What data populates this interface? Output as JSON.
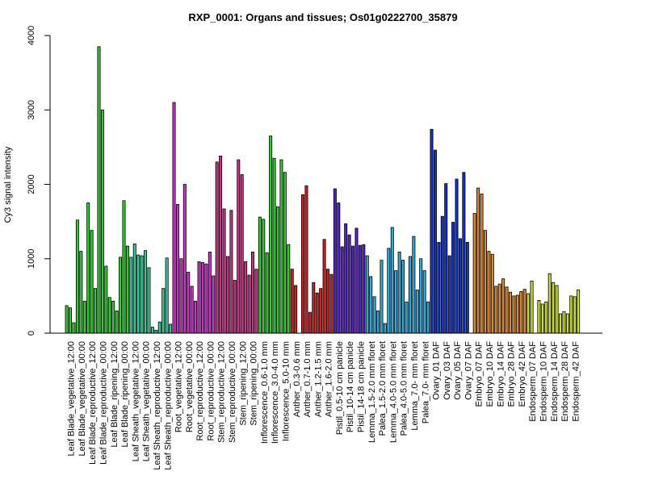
{
  "chart_data": {
    "type": "bar",
    "title": "RXP_0001: Organs and tissues; Os01g0222700_35879",
    "ylabel": "Cy3 signal intensity",
    "xlabel": "",
    "ylim": [
      0,
      4000
    ],
    "yticks": [
      0,
      1000,
      2000,
      3000,
      4000
    ],
    "grid": false,
    "groups": [
      {
        "color": "#33cc33",
        "bars": [
          {
            "label": "Leaf Blade_vegetative_12:00",
            "values": [
              370,
              340,
              140
            ]
          },
          {
            "label": "Leaf Blade_vegetative_00:00",
            "values": [
              1520,
              1100,
              430
            ]
          },
          {
            "label": "Leaf Blade_reproductive_12:00",
            "values": [
              1750,
              1380,
              600
            ]
          },
          {
            "label": "Leaf Blade_reproductive_00:00",
            "values": [
              3850,
              3000,
              900
            ]
          },
          {
            "label": "Leaf Blade_ripening_12:00",
            "values": [
              480,
              430,
              300
            ]
          },
          {
            "label": "Leaf Blade_ripening_00:00",
            "values": [
              1020,
              1780,
              1170
            ]
          }
        ]
      },
      {
        "color": "#33cc99",
        "bars": [
          {
            "label": "Leaf Sheath_vegetative_12:00",
            "values": [
              1020,
              1200,
              1050
            ]
          },
          {
            "label": "Leaf Sheath_vegetative_00:00",
            "values": [
              1040,
              1110,
              880
            ]
          },
          {
            "label": "Leaf Sheath_reproductive_12:00",
            "values": [
              80,
              40,
              150
            ]
          },
          {
            "label": "Leaf Sheath_reproductive_00:00",
            "values": [
              600,
              1010,
              120
            ]
          }
        ]
      },
      {
        "color": "#cc33cc",
        "bars": [
          {
            "label": "Root_vegetative_12:00",
            "values": [
              3100,
              1730,
              1000
            ]
          },
          {
            "label": "Root_vegetative_00:00",
            "values": [
              2000,
              820,
              630
            ]
          },
          {
            "label": "Root_reproductive_12:00",
            "values": [
              430,
              960,
              950
            ]
          },
          {
            "label": "Root_reproductive_00:00",
            "values": [
              930,
              1090,
              770
            ]
          }
        ]
      },
      {
        "color": "#cc3388",
        "bars": [
          {
            "label": "Stem_reproductive_12:00",
            "values": [
              2300,
              2380,
              1670
            ]
          },
          {
            "label": "Stem_reproductive_00:00",
            "values": [
              1030,
              1650,
              710
            ]
          },
          {
            "label": "Stem_ripening_12:00",
            "values": [
              2330,
              2130,
              960
            ]
          },
          {
            "label": "Stem_ripening_00:00",
            "values": [
              780,
              1090,
              860
            ]
          }
        ]
      },
      {
        "color": "#33cc33",
        "bars": [
          {
            "label": "Inflorescence_0.6-1.0 mm",
            "values": [
              1560,
              1530,
              1080
            ]
          },
          {
            "label": "Inflorescence_3.0-4.0 mm",
            "values": [
              2650,
              2350,
              1700
            ]
          },
          {
            "label": "Inflorescence_5.0-10 mm",
            "values": [
              2330,
              2160,
              1190
            ]
          }
        ]
      },
      {
        "color": "#cc2222",
        "bars": [
          {
            "label": "Anther_0.3-0.6 mm",
            "values": [
              860,
              640
            ]
          },
          {
            "label": "Anther_0.7-1.0 mm",
            "values": [
              1860,
              1980,
              280
            ]
          },
          {
            "label": "Anther_1.2-1.5 mm",
            "values": [
              680,
              540,
              600
            ]
          },
          {
            "label": "Anther_1.6-2.0 mm",
            "values": [
              1260,
              860,
              790
            ]
          }
        ]
      },
      {
        "color": "#5522cc",
        "bars": [
          {
            "label": "Pistil_0.5-10 cm panicle",
            "values": [
              1940,
              1750,
              1160
            ]
          },
          {
            "label": "Pistil_10-14 cm panicle",
            "values": [
              1470,
              1320,
              1170
            ]
          },
          {
            "label": "Pistil_14-18 cm panicle",
            "values": [
              1410,
              1180,
              1190
            ]
          }
        ]
      },
      {
        "color": "#33aadd",
        "bars": [
          {
            "label": "Lemma_1.5-2.0 mm floret",
            "values": [
              1040,
              760,
              490
            ]
          },
          {
            "label": "Palea_1.5-2.0 mm floret",
            "values": [
              300,
              980,
              130
            ]
          },
          {
            "label": "Lemma_4.0-5.0 mm floret",
            "values": [
              1140,
              1420,
              840
            ]
          },
          {
            "label": "Palea_4.0-5.0 mm floret",
            "values": [
              1090,
              980,
              420
            ]
          },
          {
            "label": "Lemma_7.0- mm floret",
            "values": [
              1030,
              1300,
              580
            ]
          },
          {
            "label": "Palea_7.0- mm floret",
            "values": [
              1000,
              840,
              420
            ]
          }
        ]
      },
      {
        "color": "#1133cc",
        "bars": [
          {
            "label": "Ovary_01 DAF",
            "values": [
              2740,
              2460,
              1220
            ]
          },
          {
            "label": "Ovary_03 DAF",
            "values": [
              1570,
              2010,
              1040
            ]
          },
          {
            "label": "Ovary_05 DAF",
            "values": [
              1490,
              2070,
              1270
            ]
          },
          {
            "label": "Ovary_07 DAF",
            "values": [
              2160,
              1220
            ]
          }
        ]
      },
      {
        "color": "#dd8833",
        "bars": [
          {
            "label": "Embryo_07 DAF",
            "values": [
              1610,
              1950,
              1870
            ]
          },
          {
            "label": "Embryo_10 DAF",
            "values": [
              1380,
              1100,
              1060
            ]
          },
          {
            "label": "Embryo_14 DAF",
            "values": [
              630,
              660,
              730
            ]
          },
          {
            "label": "Embryo_28 DAF",
            "values": [
              620,
              550,
              500
            ]
          },
          {
            "label": "Embryo_42 DAF",
            "values": [
              510,
              560,
              590
            ]
          }
        ]
      },
      {
        "color": "#ccdd33",
        "bars": [
          {
            "label": "Endosperm_07 DAF",
            "values": [
              530,
              700
            ]
          },
          {
            "label": "Endosperm_10 DAF",
            "values": [
              440,
              390,
              420
            ]
          },
          {
            "label": "Endosperm_14 DAF",
            "values": [
              800,
              680,
              640
            ]
          },
          {
            "label": "Endosperm_28 DAF",
            "values": [
              260,
              290,
              260
            ]
          },
          {
            "label": "Endosperm_42 DAF",
            "values": [
              500,
              490,
              580
            ]
          }
        ]
      }
    ]
  }
}
